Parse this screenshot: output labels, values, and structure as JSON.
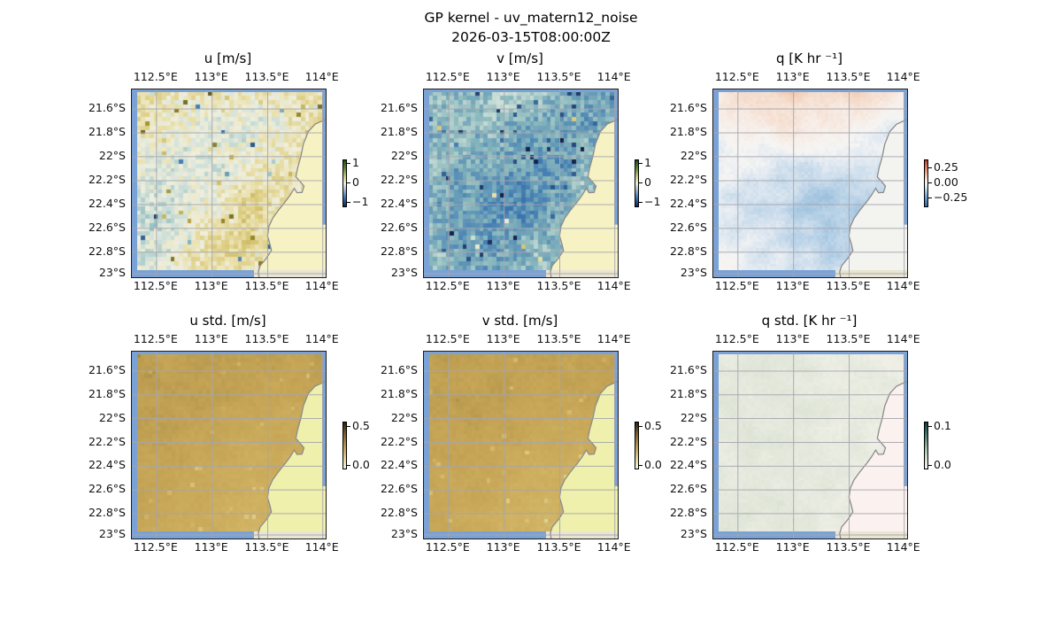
{
  "figure": {
    "suptitle_line1": "GP kernel - uv_matern12_noise",
    "suptitle_line2": "2026-03-15T08:00:00Z"
  },
  "map_style": {
    "ocean_edge_color": "#7aa2d6",
    "coastline_color": "#8c8c8c",
    "gridline_color": "#a6a6ae",
    "outer_land_color": "#e9e5d2",
    "grid": "on"
  },
  "chart_data": [
    {
      "type": "heatmap",
      "title": "u [m/s]",
      "x_ticks": [
        "112.5°E",
        "113°E",
        "113.5°E",
        "114°E"
      ],
      "y_ticks": [
        "21.6°S",
        "21.8°S",
        "22°S",
        "22.2°S",
        "22.4°S",
        "22.6°S",
        "22.8°S",
        "23°S"
      ],
      "extent": {
        "lon": [
          112.3,
          114.02
        ],
        "lat": [
          -23.03,
          -21.43
        ]
      },
      "colorbar": {
        "labels": [
          "1",
          "0",
          "−1"
        ],
        "fracs": [
          0.08,
          0.5,
          0.92
        ],
        "range": [
          -1,
          1
        ],
        "gradient": [
          [
            0,
            "#1e4620"
          ],
          [
            18,
            "#5c8b35"
          ],
          [
            35,
            "#c6c87e"
          ],
          [
            50,
            "#f1efd5"
          ],
          [
            62,
            "#a9c4cf"
          ],
          [
            80,
            "#4076b4"
          ],
          [
            100,
            "#16224e"
          ]
        ]
      },
      "cmap": [
        [
          -1,
          "#16224e"
        ],
        [
          -0.55,
          "#3f7ab2"
        ],
        [
          -0.3,
          "#8ab8bd"
        ],
        [
          -0.12,
          "#cfe0d8"
        ],
        [
          0,
          "#eeeedd"
        ],
        [
          0.12,
          "#eae0ac"
        ],
        [
          0.3,
          "#d8c878"
        ],
        [
          0.55,
          "#a3922e"
        ],
        [
          1,
          "#4c441a"
        ]
      ],
      "land_color": "#f6f2c4",
      "values": [
        [
          0.18,
          0.12,
          0.1,
          0.06,
          0.1,
          0.16
        ],
        [
          0.1,
          0.04,
          -0.02,
          -0.06,
          0.04,
          0.12
        ],
        [
          0.0,
          -0.06,
          -0.08,
          0.04,
          0.14,
          0.08
        ],
        [
          -0.1,
          -0.12,
          0.02,
          0.18,
          0.1,
          0.04
        ],
        [
          -0.14,
          -0.08,
          0.12,
          0.22,
          0.06,
          0.02
        ],
        [
          -0.08,
          0.06,
          0.16,
          0.08,
          0.02,
          0.04
        ]
      ],
      "render": {
        "cells": [
          44,
          42
        ],
        "jitter": 0.13,
        "mid": 0.07,
        "spike": {
          "p": 0.03,
          "amp": 0.5,
          "neg": 0.35
        },
        "seed": 11
      }
    },
    {
      "type": "heatmap",
      "title": "v [m/s]",
      "x_ticks": [
        "112.5°E",
        "113°E",
        "113.5°E",
        "114°E"
      ],
      "y_ticks": [
        "21.6°S",
        "21.8°S",
        "22°S",
        "22.2°S",
        "22.4°S",
        "22.6°S",
        "22.8°S",
        "23°S"
      ],
      "extent": {
        "lon": [
          112.3,
          114.02
        ],
        "lat": [
          -23.03,
          -21.43
        ]
      },
      "colorbar": {
        "labels": [
          "1",
          "0",
          "−1"
        ],
        "fracs": [
          0.08,
          0.5,
          0.92
        ],
        "range": [
          -1,
          1
        ],
        "gradient": [
          [
            0,
            "#1e4620"
          ],
          [
            18,
            "#5c8b35"
          ],
          [
            35,
            "#c6c87e"
          ],
          [
            50,
            "#f1efd5"
          ],
          [
            62,
            "#a9c4cf"
          ],
          [
            80,
            "#4076b4"
          ],
          [
            100,
            "#16224e"
          ]
        ]
      },
      "cmap": [
        [
          -1,
          "#16224e"
        ],
        [
          -0.55,
          "#3f7ab2"
        ],
        [
          -0.3,
          "#8ab8bd"
        ],
        [
          -0.12,
          "#cfe0d8"
        ],
        [
          0,
          "#eeeedd"
        ],
        [
          0.12,
          "#eae0ac"
        ],
        [
          0.3,
          "#d8c878"
        ],
        [
          0.55,
          "#a3922e"
        ],
        [
          1,
          "#4c441a"
        ]
      ],
      "land_color": "#f6f2c4",
      "values": [
        [
          -0.22,
          -0.28,
          -0.22,
          -0.26,
          -0.34,
          -0.3
        ],
        [
          -0.28,
          -0.24,
          -0.3,
          -0.32,
          -0.38,
          -0.32
        ],
        [
          -0.26,
          -0.32,
          -0.36,
          -0.44,
          -0.34,
          -0.24
        ],
        [
          -0.3,
          -0.38,
          -0.52,
          -0.42,
          -0.28,
          -0.18
        ],
        [
          -0.34,
          -0.44,
          -0.4,
          -0.34,
          -0.22,
          -0.12
        ],
        [
          -0.26,
          -0.32,
          -0.36,
          -0.28,
          -0.16,
          -0.08
        ]
      ],
      "render": {
        "cells": [
          44,
          42
        ],
        "jitter": 0.12,
        "mid": 0.07,
        "spike": {
          "p": 0.035,
          "amp": 0.45,
          "neg": 0.85
        },
        "seed": 22
      }
    },
    {
      "type": "heatmap",
      "title": "q [K hr ⁻¹]",
      "x_ticks": [
        "112.5°E",
        "113°E",
        "113.5°E",
        "114°E"
      ],
      "y_ticks": [
        "21.6°S",
        "21.8°S",
        "22°S",
        "22.2°S",
        "22.4°S",
        "22.6°S",
        "22.8°S",
        "23°S"
      ],
      "extent": {
        "lon": [
          112.3,
          114.02
        ],
        "lat": [
          -23.03,
          -21.43
        ]
      },
      "colorbar": {
        "labels": [
          "0.25",
          "0.00",
          "−0.25"
        ],
        "fracs": [
          0.18,
          0.5,
          0.82
        ],
        "range": [
          -0.35,
          0.35
        ],
        "gradient": [
          [
            0,
            "#b8402f"
          ],
          [
            25,
            "#e8a285"
          ],
          [
            45,
            "#f5efec"
          ],
          [
            55,
            "#e9eef4"
          ],
          [
            75,
            "#7fafd4"
          ],
          [
            100,
            "#2f63a4"
          ]
        ]
      },
      "cmap": [
        [
          -0.35,
          "#2f63a4"
        ],
        [
          -0.12,
          "#a8c8e2"
        ],
        [
          -0.04,
          "#dfe8f1"
        ],
        [
          0,
          "#f6f5f3"
        ],
        [
          0.04,
          "#f7ece5"
        ],
        [
          0.12,
          "#f3cdb4"
        ],
        [
          0.35,
          "#b8402f"
        ]
      ],
      "land_color": "#f3f3f0",
      "values": [
        [
          0.03,
          0.09,
          0.12,
          0.07,
          0.09,
          0.04
        ],
        [
          0.01,
          0.03,
          0.04,
          0.02,
          0.01,
          -0.02
        ],
        [
          -0.02,
          -0.03,
          -0.03,
          -0.05,
          -0.06,
          -0.05
        ],
        [
          -0.04,
          -0.06,
          -0.09,
          -0.13,
          -0.09,
          -0.06
        ],
        [
          -0.02,
          -0.05,
          -0.07,
          -0.11,
          -0.1,
          -0.07
        ],
        [
          0.0,
          -0.02,
          -0.05,
          -0.07,
          -0.06,
          -0.05
        ]
      ],
      "render": {
        "cells": [
          64,
          58
        ],
        "jitter": 0.012,
        "mid": 0.03,
        "spike": {
          "p": 0,
          "amp": 0,
          "neg": 0
        },
        "seed": 33
      }
    },
    {
      "type": "heatmap",
      "title": "u std. [m/s]",
      "x_ticks": [
        "112.5°E",
        "113°E",
        "113.5°E",
        "114°E"
      ],
      "y_ticks": [
        "21.6°S",
        "21.8°S",
        "22°S",
        "22.2°S",
        "22.4°S",
        "22.6°S",
        "22.8°S",
        "23°S"
      ],
      "extent": {
        "lon": [
          112.3,
          114.02
        ],
        "lat": [
          -23.03,
          -21.43
        ]
      },
      "colorbar": {
        "labels": [
          "0.5",
          "0.0"
        ],
        "fracs": [
          0.1,
          0.95
        ],
        "range": [
          0,
          0.5
        ],
        "gradient": [
          [
            0,
            "#2e2010"
          ],
          [
            25,
            "#7a5f2c"
          ],
          [
            55,
            "#bd9f52"
          ],
          [
            80,
            "#e2d49a"
          ],
          [
            100,
            "#f6f2da"
          ]
        ]
      },
      "cmap": [
        [
          0,
          "#f6f2da"
        ],
        [
          0.1,
          "#ecdfae"
        ],
        [
          0.2,
          "#ddc884"
        ],
        [
          0.3,
          "#d0b363"
        ],
        [
          0.4,
          "#c5a455"
        ],
        [
          0.45,
          "#b99a4e"
        ],
        [
          0.5,
          "#2e2010"
        ]
      ],
      "land_color": "#eef0ab",
      "values": [
        [
          0.43,
          0.41,
          0.43,
          0.42,
          0.41,
          0.42
        ],
        [
          0.42,
          0.43,
          0.42,
          0.41,
          0.39,
          0.41
        ],
        [
          0.42,
          0.42,
          0.4,
          0.37,
          0.36,
          0.39
        ],
        [
          0.41,
          0.4,
          0.38,
          0.34,
          0.35,
          0.37
        ],
        [
          0.4,
          0.38,
          0.35,
          0.31,
          0.33,
          0.36
        ],
        [
          0.38,
          0.36,
          0.33,
          0.3,
          0.31,
          0.34
        ]
      ],
      "render": {
        "cells": [
          48,
          44
        ],
        "jitter": 0.018,
        "mid": 0.025,
        "spike": {
          "p": 0.012,
          "amp": -0.1,
          "neg": 1
        },
        "seed": 44
      }
    },
    {
      "type": "heatmap",
      "title": "v std. [m/s]",
      "x_ticks": [
        "112.5°E",
        "113°E",
        "113.5°E",
        "114°E"
      ],
      "y_ticks": [
        "21.6°S",
        "21.8°S",
        "22°S",
        "22.2°S",
        "22.4°S",
        "22.6°S",
        "22.8°S",
        "23°S"
      ],
      "extent": {
        "lon": [
          112.3,
          114.02
        ],
        "lat": [
          -23.03,
          -21.43
        ]
      },
      "colorbar": {
        "labels": [
          "0.5",
          "0.0"
        ],
        "fracs": [
          0.1,
          0.95
        ],
        "range": [
          0,
          0.5
        ],
        "gradient": [
          [
            0,
            "#2e2010"
          ],
          [
            25,
            "#7a5f2c"
          ],
          [
            55,
            "#bd9f52"
          ],
          [
            80,
            "#e2d49a"
          ],
          [
            100,
            "#f6f2da"
          ]
        ]
      },
      "cmap": [
        [
          0,
          "#f6f2da"
        ],
        [
          0.1,
          "#ecdfae"
        ],
        [
          0.2,
          "#ddc884"
        ],
        [
          0.3,
          "#d0b363"
        ],
        [
          0.4,
          "#c5a455"
        ],
        [
          0.45,
          "#b99a4e"
        ],
        [
          0.5,
          "#2e2010"
        ]
      ],
      "land_color": "#eef0ab",
      "values": [
        [
          0.42,
          0.42,
          0.43,
          0.42,
          0.41,
          0.42
        ],
        [
          0.43,
          0.42,
          0.42,
          0.4,
          0.39,
          0.41
        ],
        [
          0.42,
          0.41,
          0.4,
          0.38,
          0.36,
          0.38
        ],
        [
          0.41,
          0.39,
          0.37,
          0.34,
          0.34,
          0.37
        ],
        [
          0.39,
          0.37,
          0.34,
          0.31,
          0.33,
          0.35
        ],
        [
          0.38,
          0.35,
          0.32,
          0.3,
          0.31,
          0.34
        ]
      ],
      "render": {
        "cells": [
          48,
          44
        ],
        "jitter": 0.018,
        "mid": 0.025,
        "spike": {
          "p": 0.012,
          "amp": -0.1,
          "neg": 1
        },
        "seed": 55
      }
    },
    {
      "type": "heatmap",
      "title": "q std. [K hr ⁻¹]",
      "x_ticks": [
        "112.5°E",
        "113°E",
        "113.5°E",
        "114°E"
      ],
      "y_ticks": [
        "21.6°S",
        "21.8°S",
        "22°S",
        "22.2°S",
        "22.4°S",
        "22.6°S",
        "22.8°S",
        "23°S"
      ],
      "extent": {
        "lon": [
          112.3,
          114.02
        ],
        "lat": [
          -23.03,
          -21.43
        ]
      },
      "colorbar": {
        "labels": [
          "0.1",
          "0.0"
        ],
        "fracs": [
          0.1,
          0.95
        ],
        "range": [
          0,
          0.1
        ],
        "gradient": [
          [
            0,
            "#123c40"
          ],
          [
            30,
            "#4f7f72"
          ],
          [
            60,
            "#a8c3ab"
          ],
          [
            85,
            "#dfe7da"
          ],
          [
            100,
            "#f7f5f0"
          ]
        ]
      },
      "cmap": [
        [
          0,
          "#faf3f0"
        ],
        [
          0.02,
          "#edeee4"
        ],
        [
          0.04,
          "#dde4d6"
        ],
        [
          0.07,
          "#a9c0ac"
        ],
        [
          0.1,
          "#123c40"
        ]
      ],
      "land_color": "#fbf1ee",
      "values": [
        [
          0.03,
          0.032,
          0.03,
          0.028,
          0.026,
          0.022
        ],
        [
          0.031,
          0.033,
          0.031,
          0.029,
          0.026,
          0.022
        ],
        [
          0.032,
          0.033,
          0.032,
          0.03,
          0.027,
          0.023
        ],
        [
          0.031,
          0.032,
          0.033,
          0.03,
          0.027,
          0.023
        ],
        [
          0.03,
          0.031,
          0.032,
          0.029,
          0.026,
          0.022
        ],
        [
          0.029,
          0.03,
          0.031,
          0.028,
          0.025,
          0.021
        ]
      ],
      "render": {
        "cells": [
          60,
          56
        ],
        "jitter": 0.004,
        "mid": 0.008,
        "spike": {
          "p": 0,
          "amp": 0,
          "neg": 0
        },
        "seed": 66
      }
    }
  ]
}
